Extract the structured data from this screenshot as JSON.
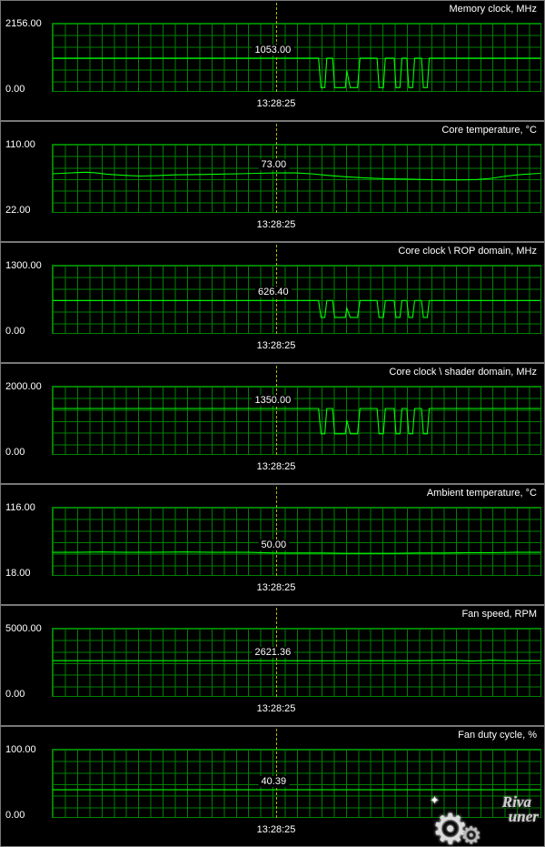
{
  "colors": {
    "background": "#000000",
    "grid": "#008000",
    "line": "#00ff00",
    "cursor": "#b4b400",
    "text": "#ffffff",
    "panel_border": "#787878",
    "logo": "#c8c8c8"
  },
  "logo": {
    "gear_glyph": "⚙",
    "sparkle_glyph": "✦",
    "text_top": "Riva",
    "text_bottom": "uner"
  },
  "chart_data": [
    {
      "type": "line",
      "title": "Memory clock, MHz",
      "ylim": [
        0,
        2156
      ],
      "y_max_label": "2156.00",
      "y_min_label": "0.00",
      "current_value": "1053.00",
      "timestamp": "13:28:25",
      "legend": "none",
      "grid": true,
      "points": [
        [
          0,
          1053
        ],
        [
          0.545,
          1053
        ],
        [
          0.55,
          108
        ],
        [
          0.558,
          108
        ],
        [
          0.562,
          1053
        ],
        [
          0.574,
          1053
        ],
        [
          0.578,
          108
        ],
        [
          0.6,
          108
        ],
        [
          0.603,
          650
        ],
        [
          0.61,
          108
        ],
        [
          0.625,
          108
        ],
        [
          0.63,
          1053
        ],
        [
          0.665,
          1053
        ],
        [
          0.669,
          108
        ],
        [
          0.678,
          108
        ],
        [
          0.682,
          1053
        ],
        [
          0.7,
          1053
        ],
        [
          0.704,
          108
        ],
        [
          0.712,
          108
        ],
        [
          0.716,
          1053
        ],
        [
          0.726,
          1053
        ],
        [
          0.73,
          108
        ],
        [
          0.738,
          108
        ],
        [
          0.742,
          1053
        ],
        [
          0.756,
          1053
        ],
        [
          0.76,
          108
        ],
        [
          0.768,
          108
        ],
        [
          0.772,
          1053
        ],
        [
          1,
          1053
        ]
      ]
    },
    {
      "type": "line",
      "title": "Core temperature, °C",
      "ylim": [
        22,
        110
      ],
      "y_max_label": "110.00",
      "y_min_label": "22.00",
      "current_value": "73.00",
      "timestamp": "13:28:25",
      "legend": "none",
      "grid": true,
      "points": [
        [
          0,
          72
        ],
        [
          0.02,
          72.5
        ],
        [
          0.05,
          73.5
        ],
        [
          0.07,
          74
        ],
        [
          0.09,
          73
        ],
        [
          0.11,
          71.5
        ],
        [
          0.13,
          70.5
        ],
        [
          0.16,
          69.5
        ],
        [
          0.18,
          69
        ],
        [
          0.21,
          69.5
        ],
        [
          0.25,
          70.5
        ],
        [
          0.3,
          71
        ],
        [
          0.34,
          71.5
        ],
        [
          0.38,
          72
        ],
        [
          0.42,
          72.5
        ],
        [
          0.455,
          73
        ],
        [
          0.5,
          73
        ],
        [
          0.53,
          72
        ],
        [
          0.56,
          70
        ],
        [
          0.6,
          68
        ],
        [
          0.64,
          66.5
        ],
        [
          0.68,
          65.5
        ],
        [
          0.72,
          65
        ],
        [
          0.76,
          64.5
        ],
        [
          0.8,
          64
        ],
        [
          0.84,
          64
        ],
        [
          0.87,
          64.5
        ],
        [
          0.9,
          66
        ],
        [
          0.93,
          69
        ],
        [
          0.96,
          71
        ],
        [
          1,
          72.5
        ]
      ]
    },
    {
      "type": "line",
      "title": "Core clock \\ ROP domain, MHz",
      "ylim": [
        0,
        1300
      ],
      "y_max_label": "1300.00",
      "y_min_label": "0.00",
      "current_value": "626.40",
      "timestamp": "13:28:25",
      "legend": "none",
      "grid": true,
      "points": [
        [
          0,
          626.4
        ],
        [
          0.545,
          626.4
        ],
        [
          0.55,
          301
        ],
        [
          0.558,
          301
        ],
        [
          0.562,
          626.4
        ],
        [
          0.574,
          626.4
        ],
        [
          0.578,
          301
        ],
        [
          0.6,
          301
        ],
        [
          0.603,
          480
        ],
        [
          0.61,
          301
        ],
        [
          0.625,
          301
        ],
        [
          0.63,
          626.4
        ],
        [
          0.665,
          626.4
        ],
        [
          0.669,
          301
        ],
        [
          0.678,
          301
        ],
        [
          0.682,
          626.4
        ],
        [
          0.7,
          626.4
        ],
        [
          0.704,
          301
        ],
        [
          0.712,
          301
        ],
        [
          0.716,
          626.4
        ],
        [
          0.726,
          626.4
        ],
        [
          0.73,
          301
        ],
        [
          0.738,
          301
        ],
        [
          0.742,
          626.4
        ],
        [
          0.756,
          626.4
        ],
        [
          0.76,
          301
        ],
        [
          0.768,
          301
        ],
        [
          0.772,
          626.4
        ],
        [
          1,
          626.4
        ]
      ]
    },
    {
      "type": "line",
      "title": "Core clock \\ shader domain, MHz",
      "ylim": [
        0,
        2000
      ],
      "y_max_label": "2000.00",
      "y_min_label": "0.00",
      "current_value": "1350.00",
      "timestamp": "13:28:25",
      "legend": "none",
      "grid": true,
      "points": [
        [
          0,
          1350
        ],
        [
          0.545,
          1350
        ],
        [
          0.55,
          601
        ],
        [
          0.558,
          601
        ],
        [
          0.562,
          1350
        ],
        [
          0.574,
          1350
        ],
        [
          0.578,
          601
        ],
        [
          0.6,
          601
        ],
        [
          0.603,
          1000
        ],
        [
          0.61,
          601
        ],
        [
          0.625,
          601
        ],
        [
          0.63,
          1350
        ],
        [
          0.665,
          1350
        ],
        [
          0.669,
          601
        ],
        [
          0.678,
          601
        ],
        [
          0.682,
          1350
        ],
        [
          0.7,
          1350
        ],
        [
          0.704,
          601
        ],
        [
          0.712,
          601
        ],
        [
          0.716,
          1350
        ],
        [
          0.726,
          1350
        ],
        [
          0.73,
          601
        ],
        [
          0.738,
          601
        ],
        [
          0.742,
          1350
        ],
        [
          0.756,
          1350
        ],
        [
          0.76,
          601
        ],
        [
          0.768,
          601
        ],
        [
          0.772,
          1350
        ],
        [
          1,
          1350
        ]
      ]
    },
    {
      "type": "line",
      "title": "Ambient temperature, °C",
      "ylim": [
        18,
        116
      ],
      "y_max_label": "116.00",
      "y_min_label": "18.00",
      "current_value": "50.00",
      "timestamp": "13:28:25",
      "legend": "none",
      "grid": true,
      "points": [
        [
          0,
          51
        ],
        [
          0.05,
          51
        ],
        [
          0.1,
          51.5
        ],
        [
          0.15,
          51
        ],
        [
          0.2,
          51
        ],
        [
          0.27,
          51.5
        ],
        [
          0.33,
          51
        ],
        [
          0.4,
          51
        ],
        [
          0.455,
          50
        ],
        [
          0.5,
          50
        ],
        [
          0.55,
          50
        ],
        [
          0.6,
          49.5
        ],
        [
          0.65,
          49.5
        ],
        [
          0.7,
          49.5
        ],
        [
          0.75,
          50
        ],
        [
          0.8,
          50
        ],
        [
          0.85,
          50.5
        ],
        [
          0.9,
          50.5
        ],
        [
          0.95,
          51
        ],
        [
          1,
          51
        ]
      ]
    },
    {
      "type": "line",
      "title": "Fan speed, RPM",
      "ylim": [
        0,
        5000
      ],
      "y_max_label": "5000.00",
      "y_min_label": "0.00",
      "current_value": "2621.36",
      "timestamp": "13:28:25",
      "legend": "none",
      "grid": true,
      "points": [
        [
          0,
          2621
        ],
        [
          0.2,
          2621
        ],
        [
          0.4,
          2621
        ],
        [
          0.455,
          2621.36
        ],
        [
          0.55,
          2615
        ],
        [
          0.65,
          2621
        ],
        [
          0.75,
          2621
        ],
        [
          0.82,
          2660
        ],
        [
          0.86,
          2595
        ],
        [
          0.9,
          2655
        ],
        [
          0.94,
          2620
        ],
        [
          1,
          2621
        ]
      ]
    },
    {
      "type": "line",
      "title": "Fan duty cycle, %",
      "ylim": [
        0,
        100
      ],
      "y_max_label": "100.00",
      "y_min_label": "0.00",
      "current_value": "40.39",
      "timestamp": "13:28:25",
      "legend": "none",
      "grid": true,
      "points": [
        [
          0,
          40.39
        ],
        [
          0.455,
          40.39
        ],
        [
          1,
          40.39
        ]
      ]
    }
  ]
}
